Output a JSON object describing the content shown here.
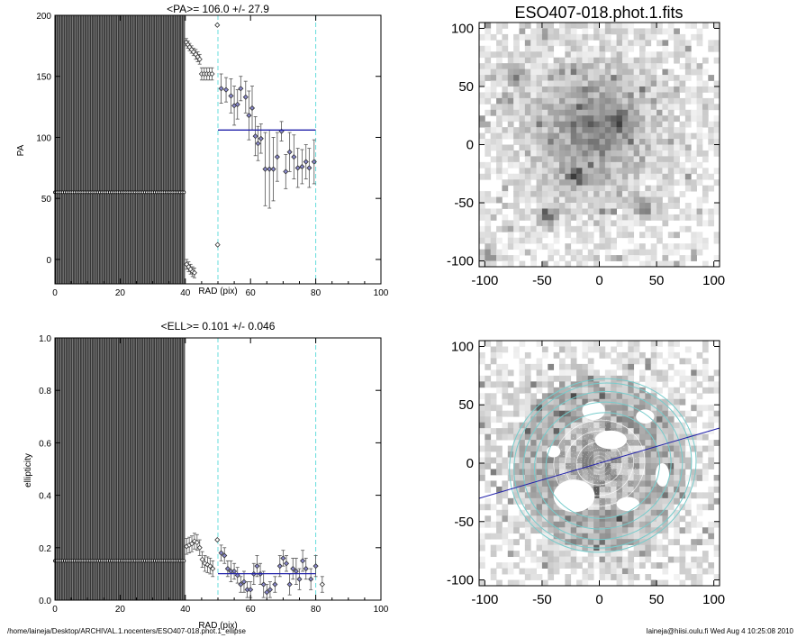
{
  "page_title": "ESO407-018.phot.1.fits",
  "footer": {
    "path": "/home/laineja/Desktop/ARCHIVAL.1.nocenters/ESO407-018.phot.1_ellipse",
    "stamp": "laineja@hiisi.oulu.fi  Wed Aug  4 10:25:08 2010"
  },
  "colors": {
    "fit_line": "#2222aa",
    "range_lines": "#66dddd",
    "symbol_fill": "#8888cc",
    "isophote_rings": "#77cccc"
  },
  "chart_data": [
    {
      "id": "pa",
      "type": "scatter",
      "title": "<PA>= 106.0 +/-  27.9",
      "xlabel": "RAD (pix)",
      "ylabel": "PA",
      "xlim": [
        0,
        100
      ],
      "ylim": [
        -20,
        200
      ],
      "xticks": [
        "0",
        "20",
        "40",
        "60",
        "80",
        "100"
      ],
      "yticks": [
        "0",
        "50",
        "100",
        "150",
        "200"
      ],
      "xtick_values": [
        0,
        20,
        40,
        60,
        80,
        100
      ],
      "ytick_values": [
        0,
        50,
        100,
        150,
        200
      ],
      "range_lines_x": [
        50,
        80
      ],
      "mean_line": {
        "x": [
          50,
          80
        ],
        "y": 106.0
      },
      "inner_points": {
        "x_start": 0,
        "x_end": 40,
        "y": 55,
        "y_low": -20,
        "y_high": 200
      },
      "points": [
        {
          "x": 40.3,
          "y": 178,
          "err": 3
        },
        {
          "x": 40.8,
          "y": 176,
          "err": 3
        },
        {
          "x": 41.3,
          "y": 174,
          "err": 3
        },
        {
          "x": 41.9,
          "y": 172,
          "err": 3
        },
        {
          "x": 42.5,
          "y": 170,
          "err": 3
        },
        {
          "x": 43.2,
          "y": 168,
          "err": 4
        },
        {
          "x": 43.8,
          "y": 166,
          "err": 4
        },
        {
          "x": 44.4,
          "y": 164,
          "err": 4
        },
        {
          "x": 45.0,
          "y": 152,
          "err": 5
        },
        {
          "x": 45.8,
          "y": 152,
          "err": 5
        },
        {
          "x": 46.6,
          "y": 152,
          "err": 5
        },
        {
          "x": 47.4,
          "y": 152,
          "err": 5
        },
        {
          "x": 48.2,
          "y": 152,
          "err": 5
        },
        {
          "x": 40.4,
          "y": -4,
          "err": 4
        },
        {
          "x": 41.0,
          "y": -6,
          "err": 4
        },
        {
          "x": 41.6,
          "y": -8,
          "err": 4
        },
        {
          "x": 42.2,
          "y": -10,
          "err": 4
        },
        {
          "x": 42.8,
          "y": -11,
          "err": 4
        },
        {
          "x": 49.8,
          "y": 192,
          "err": 0
        },
        {
          "x": 49.9,
          "y": 12,
          "err": 0
        },
        {
          "x": 51.0,
          "y": 140,
          "err": 12
        },
        {
          "x": 52.5,
          "y": 139,
          "err": 10
        },
        {
          "x": 54.0,
          "y": 134,
          "err": 14
        },
        {
          "x": 55.0,
          "y": 126,
          "err": 16
        },
        {
          "x": 56.0,
          "y": 127,
          "err": 12
        },
        {
          "x": 57.0,
          "y": 140,
          "err": 10
        },
        {
          "x": 58.5,
          "y": 133,
          "err": 13
        },
        {
          "x": 59.5,
          "y": 118,
          "err": 20
        },
        {
          "x": 60.5,
          "y": 124,
          "err": 18
        },
        {
          "x": 61.5,
          "y": 101,
          "err": 16
        },
        {
          "x": 62.3,
          "y": 95,
          "err": 14
        },
        {
          "x": 63.2,
          "y": 99,
          "err": 12
        },
        {
          "x": 64.5,
          "y": 74,
          "err": 30
        },
        {
          "x": 65.8,
          "y": 74,
          "err": 32
        },
        {
          "x": 67.0,
          "y": 74,
          "err": 26
        },
        {
          "x": 68.2,
          "y": 84,
          "err": 20
        },
        {
          "x": 69.5,
          "y": 105,
          "err": 8
        },
        {
          "x": 70.8,
          "y": 72,
          "err": 14
        },
        {
          "x": 72.0,
          "y": 88,
          "err": 16
        },
        {
          "x": 73.3,
          "y": 84,
          "err": 18
        },
        {
          "x": 74.5,
          "y": 75,
          "err": 16
        },
        {
          "x": 75.8,
          "y": 76,
          "err": 14
        },
        {
          "x": 77.0,
          "y": 80,
          "err": 14
        },
        {
          "x": 78.0,
          "y": 75,
          "err": 16
        },
        {
          "x": 79.5,
          "y": 80,
          "err": 18
        }
      ]
    },
    {
      "id": "ell",
      "type": "scatter",
      "title": "<ELL>= 0.101 +/-  0.046",
      "xlabel": "RAD (pix)",
      "ylabel": "ellipticity",
      "xlim": [
        0,
        100
      ],
      "ylim": [
        0,
        1
      ],
      "xticks": [
        "0",
        "20",
        "40",
        "60",
        "80",
        "100"
      ],
      "yticks": [
        "0.0",
        "0.2",
        "0.4",
        "0.6",
        "0.8",
        "1.0"
      ],
      "xtick_values": [
        0,
        20,
        40,
        60,
        80,
        100
      ],
      "ytick_values": [
        0,
        0.2,
        0.4,
        0.6,
        0.8,
        1.0
      ],
      "range_lines_x": [
        50,
        80
      ],
      "mean_line": {
        "x": [
          50,
          80
        ],
        "y": 0.101
      },
      "inner_points": {
        "x_start": 0,
        "x_end": 40,
        "y": 0.15,
        "y_low": 0,
        "y_high": 1
      },
      "points": [
        {
          "x": 40.4,
          "y": 0.205,
          "err": 0.03
        },
        {
          "x": 41.2,
          "y": 0.21,
          "err": 0.03
        },
        {
          "x": 42.0,
          "y": 0.215,
          "err": 0.03
        },
        {
          "x": 42.8,
          "y": 0.225,
          "err": 0.03
        },
        {
          "x": 43.6,
          "y": 0.22,
          "err": 0.03
        },
        {
          "x": 44.4,
          "y": 0.2,
          "err": 0.03
        },
        {
          "x": 45.2,
          "y": 0.155,
          "err": 0.03
        },
        {
          "x": 46.0,
          "y": 0.14,
          "err": 0.03
        },
        {
          "x": 46.8,
          "y": 0.135,
          "err": 0.03
        },
        {
          "x": 47.6,
          "y": 0.13,
          "err": 0.03
        },
        {
          "x": 48.4,
          "y": 0.12,
          "err": 0.03
        },
        {
          "x": 49.8,
          "y": 0.23,
          "err": 0
        },
        {
          "x": 51.0,
          "y": 0.18,
          "err": 0.03
        },
        {
          "x": 52.0,
          "y": 0.17,
          "err": 0.03
        },
        {
          "x": 53.0,
          "y": 0.12,
          "err": 0.03
        },
        {
          "x": 54.0,
          "y": 0.11,
          "err": 0.04
        },
        {
          "x": 55.0,
          "y": 0.11,
          "err": 0.03
        },
        {
          "x": 56.0,
          "y": 0.095,
          "err": 0.03
        },
        {
          "x": 57.0,
          "y": 0.06,
          "err": 0.03
        },
        {
          "x": 58.0,
          "y": 0.07,
          "err": 0.04
        },
        {
          "x": 59.0,
          "y": 0.04,
          "err": 0.03
        },
        {
          "x": 60.0,
          "y": 0.04,
          "err": 0.03
        },
        {
          "x": 61.0,
          "y": 0.1,
          "err": 0.04
        },
        {
          "x": 62.0,
          "y": 0.13,
          "err": 0.04
        },
        {
          "x": 63.0,
          "y": 0.1,
          "err": 0.04
        },
        {
          "x": 64.0,
          "y": 0.06,
          "err": 0.05
        },
        {
          "x": 65.0,
          "y": 0.03,
          "err": 0.03
        },
        {
          "x": 66.0,
          "y": 0.04,
          "err": 0.03
        },
        {
          "x": 67.5,
          "y": 0.06,
          "err": 0.03
        },
        {
          "x": 69.0,
          "y": 0.13,
          "err": 0.04
        },
        {
          "x": 70.0,
          "y": 0.16,
          "err": 0.03
        },
        {
          "x": 71.0,
          "y": 0.14,
          "err": 0.03
        },
        {
          "x": 72.0,
          "y": 0.06,
          "err": 0.04
        },
        {
          "x": 73.0,
          "y": 0.12,
          "err": 0.04
        },
        {
          "x": 74.0,
          "y": 0.11,
          "err": 0.05
        },
        {
          "x": 75.0,
          "y": 0.08,
          "err": 0.04
        },
        {
          "x": 76.0,
          "y": 0.15,
          "err": 0.04
        },
        {
          "x": 77.0,
          "y": 0.12,
          "err": 0.04
        },
        {
          "x": 78.5,
          "y": 0.08,
          "err": 0.04
        },
        {
          "x": 80.0,
          "y": 0.13,
          "err": 0.04
        },
        {
          "x": 82.0,
          "y": 0.06,
          "err": 0.03
        }
      ]
    },
    {
      "id": "img-top",
      "type": "heatmap",
      "title": "ESO407-018.phot.1.fits",
      "xlim": [
        -105,
        105
      ],
      "ylim": [
        -105,
        105
      ],
      "xticks": [
        "-100",
        "-50",
        "0",
        "50",
        "100"
      ],
      "yticks": [
        "-100",
        "-50",
        "0",
        "50",
        "100"
      ],
      "xtick_values": [
        -100,
        -50,
        0,
        50,
        100
      ],
      "ytick_values": [
        -100,
        -50,
        0,
        50,
        100
      ],
      "image": "galaxy",
      "masked": false,
      "bright_sources": [
        [
          -22,
          -27
        ],
        [
          -97,
          -95
        ],
        [
          -75,
          60
        ],
        [
          -45,
          -63
        ],
        [
          18,
          20
        ],
        [
          40,
          -55
        ]
      ]
    },
    {
      "id": "img-bottom",
      "type": "heatmap",
      "title": "",
      "xlim": [
        -105,
        105
      ],
      "ylim": [
        -105,
        105
      ],
      "xticks": [
        "-100",
        "-50",
        "0",
        "50",
        "100"
      ],
      "yticks": [
        "-100",
        "-50",
        "0",
        "50",
        "100"
      ],
      "xtick_values": [
        -100,
        -50,
        0,
        50,
        100
      ],
      "ytick_values": [
        -100,
        -50,
        0,
        50,
        100
      ],
      "image": "residual",
      "masked": true,
      "pa_line_angle_deg": 16,
      "ellipse_semi_major": [
        50,
        60,
        70,
        78,
        82
      ],
      "inner_ellipse_semi_major": [
        20,
        30,
        40
      ]
    }
  ]
}
